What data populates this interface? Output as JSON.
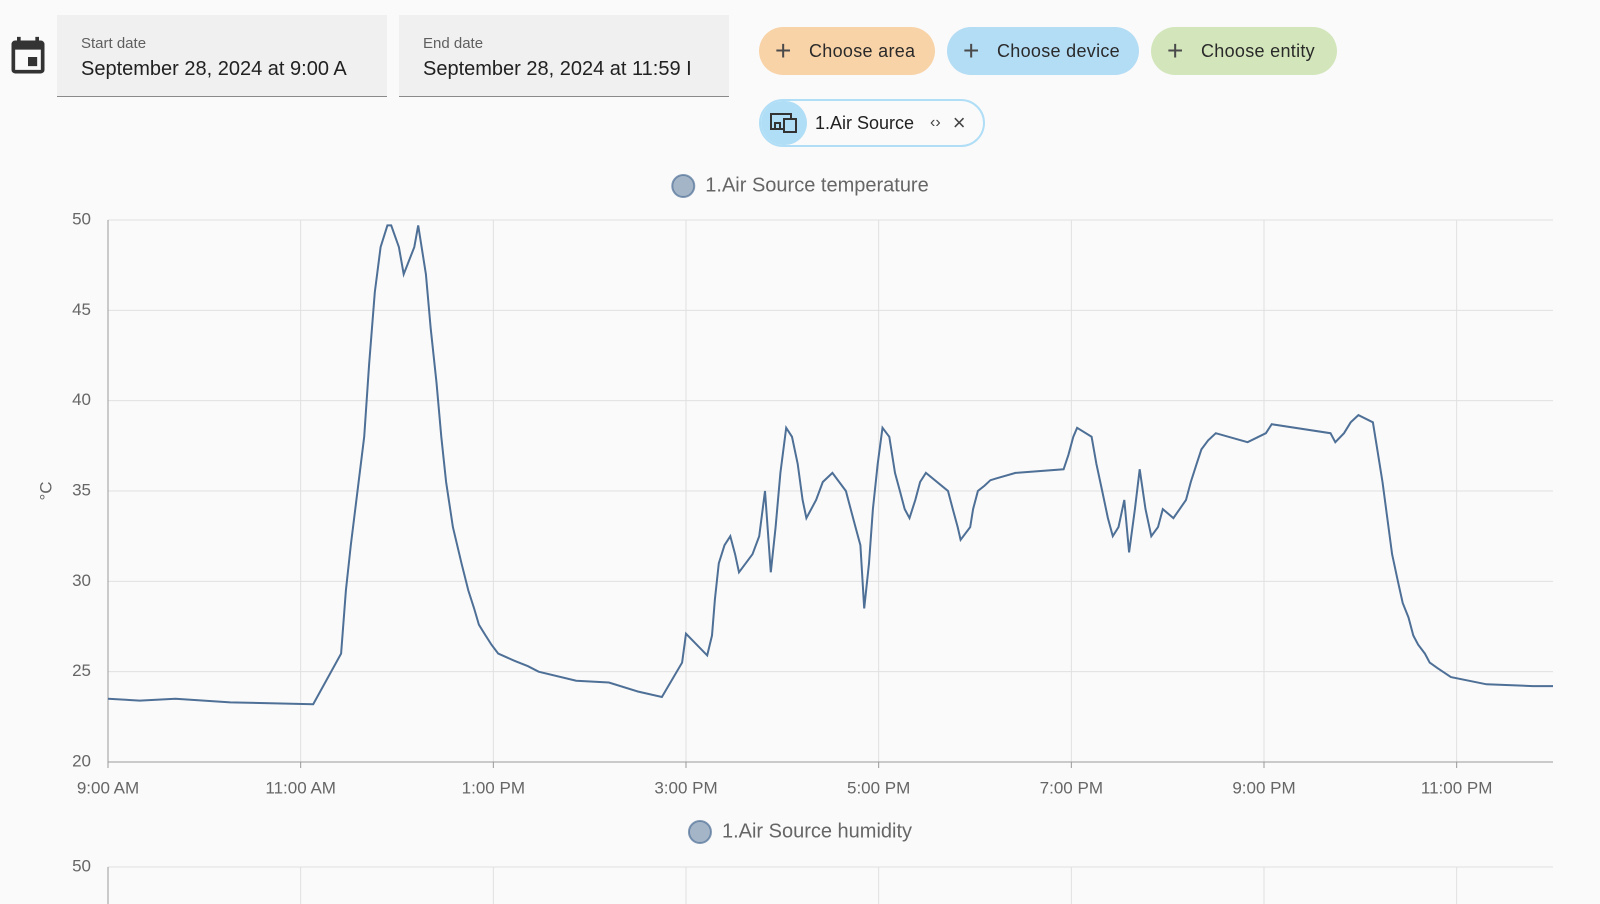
{
  "toolbar": {
    "start_date": {
      "label": "Start date",
      "value": "September 28, 2024 at 9:00 A"
    },
    "end_date": {
      "label": "End date",
      "value": "September 28, 2024 at 11:59 I"
    },
    "buttons": [
      "Choose area",
      "Choose device",
      "Choose entity"
    ],
    "chip": "1.Air Source"
  },
  "chart_data": [
    {
      "type": "line",
      "step": true,
      "legend": "top",
      "y_label": "°C",
      "grid": true,
      "x": [
        9.0,
        9.33,
        9.7,
        10.27,
        11.13,
        11.42,
        11.47,
        11.52,
        11.59,
        11.66,
        11.71,
        11.77,
        11.83,
        11.9,
        11.94,
        12.02,
        12.07,
        12.18,
        12.22,
        12.3,
        12.35,
        12.41,
        12.46,
        12.51,
        12.58,
        12.67,
        12.74,
        12.8,
        12.85,
        12.92,
        12.98,
        13.05,
        13.22,
        13.36,
        13.47,
        13.86,
        14.2,
        14.5,
        14.75,
        14.96,
        15.0,
        15.22,
        15.27,
        15.3,
        15.34,
        15.4,
        15.46,
        15.51,
        15.55,
        15.69,
        15.76,
        15.82,
        15.88,
        15.93,
        15.98,
        16.04,
        16.1,
        16.16,
        16.21,
        16.25,
        16.35,
        16.42,
        16.52,
        16.66,
        16.71,
        16.76,
        16.81,
        16.85,
        16.9,
        16.94,
        16.99,
        17.04,
        17.11,
        17.17,
        17.22,
        17.27,
        17.32,
        17.38,
        17.43,
        17.49,
        17.72,
        17.77,
        17.82,
        17.85,
        17.95,
        17.98,
        18.03,
        18.1,
        18.16,
        18.22,
        18.42,
        18.92,
        18.97,
        19.02,
        19.06,
        19.21,
        19.26,
        19.32,
        19.38,
        19.43,
        19.49,
        19.55,
        19.6,
        19.66,
        19.71,
        19.77,
        19.83,
        19.9,
        19.95,
        20.06,
        20.19,
        20.24,
        20.3,
        20.35,
        20.42,
        20.5,
        20.83,
        21.02,
        21.08,
        21.69,
        21.74,
        21.83,
        21.9,
        21.98,
        22.13,
        22.17,
        22.23,
        22.28,
        22.33,
        22.39,
        22.44,
        22.5,
        22.55,
        22.6,
        22.67,
        22.72,
        22.8,
        22.94,
        23.31,
        23.79,
        24.0
      ],
      "series": [
        {
          "name": "1.Air Source temperature",
          "color": "#4e6f96",
          "values": [
            23.5,
            23.4,
            23.5,
            23.3,
            23.2,
            26,
            29.5,
            32,
            35,
            38,
            42,
            46,
            48.5,
            49.7,
            49.7,
            48.5,
            47,
            48.5,
            49.7,
            47,
            44,
            41,
            38,
            35.5,
            33,
            31,
            29.5,
            28.5,
            27.6,
            27,
            26.5,
            26,
            25.6,
            25.3,
            25.0,
            24.5,
            24.4,
            23.9,
            23.6,
            25.5,
            27.1,
            25.9,
            27,
            29,
            31,
            32,
            32.5,
            31.5,
            30.5,
            31.5,
            32.5,
            35,
            30.5,
            33,
            36,
            38.5,
            38,
            36.5,
            34.5,
            33.5,
            34.5,
            35.5,
            36,
            35,
            34,
            33,
            32,
            28.5,
            31,
            34,
            36.5,
            38.5,
            38,
            36,
            35,
            34,
            33.5,
            34.5,
            35.5,
            36,
            35,
            34,
            33,
            32.3,
            33,
            34,
            35,
            35.3,
            35.6,
            35.7,
            36,
            36.2,
            37,
            38,
            38.5,
            38,
            36.5,
            35,
            33.5,
            32.5,
            33,
            34.5,
            31.6,
            34,
            36.2,
            34,
            32.5,
            33,
            34,
            33.5,
            34.5,
            35.5,
            36.5,
            37.3,
            37.8,
            38.2,
            37.7,
            38.2,
            38.7,
            38.2,
            37.7,
            38.2,
            38.8,
            39.2,
            38.8,
            37.5,
            35.5,
            33.5,
            31.5,
            30,
            28.8,
            28,
            27,
            26.5,
            26,
            25.5,
            25.2,
            24.7,
            24.3,
            24.2,
            24.2
          ]
        }
      ],
      "xlim": [
        9,
        24
      ],
      "xticks": [
        {
          "value": 9,
          "label": "9:00 AM"
        },
        {
          "value": 11,
          "label": "11:00 AM"
        },
        {
          "value": 13,
          "label": "1:00 PM"
        },
        {
          "value": 15,
          "label": "3:00 PM"
        },
        {
          "value": 17,
          "label": "5:00 PM"
        },
        {
          "value": 19,
          "label": "7:00 PM"
        },
        {
          "value": 21,
          "label": "9:00 PM"
        },
        {
          "value": 23,
          "label": "11:00 PM"
        }
      ],
      "ylim": [
        20,
        50
      ],
      "yticks": [
        20,
        25,
        30,
        35,
        40,
        45,
        50
      ]
    },
    {
      "type": "line",
      "legend": "top",
      "grid": true,
      "series": [
        {
          "name": "1.Air Source humidity",
          "color": "#4e6f96"
        }
      ],
      "yticks": [
        50
      ]
    }
  ]
}
